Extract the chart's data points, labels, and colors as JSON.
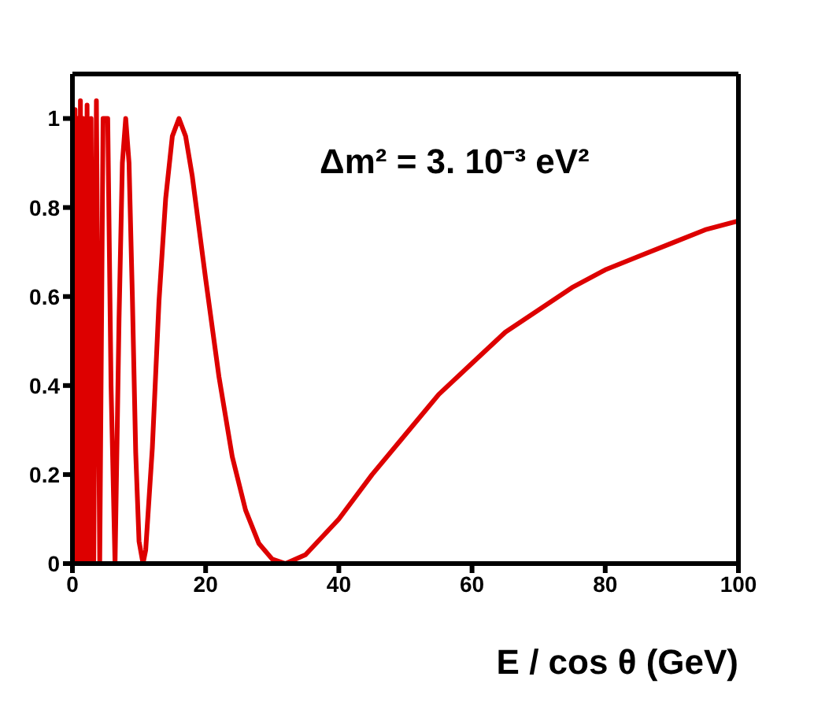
{
  "chart_data": {
    "type": "line",
    "xlabel": "E / cos θ (GeV)",
    "annotations": [
      "Δm² = 3. 10⁻³ eV²"
    ],
    "x": [
      0.2,
      0.4,
      0.6,
      0.8,
      1.0,
      1.2,
      1.4,
      1.6,
      1.9,
      2.2,
      2.5,
      2.8,
      3.2,
      3.6,
      4.1,
      4.6,
      5.3,
      5.8,
      6.4,
      7.0,
      7.5,
      8.0,
      8.5,
      9.0,
      9.5,
      10.0,
      10.6,
      11,
      12,
      13,
      14,
      15,
      16,
      17,
      18,
      20,
      22,
      24,
      26,
      28,
      30,
      32,
      35,
      40,
      45,
      50,
      55,
      60,
      65,
      70,
      75,
      80,
      85,
      90,
      95,
      100
    ],
    "series": [
      {
        "color": "#dd0000",
        "values": [
          0,
          1.02,
          0,
          1,
          0,
          1.04,
          0,
          1,
          0,
          1.03,
          0,
          1,
          0,
          1.04,
          0,
          1,
          1,
          0.4,
          0,
          0.55,
          0.9,
          1,
          0.9,
          0.6,
          0.25,
          0.05,
          0,
          0.03,
          0.26,
          0.59,
          0.82,
          0.96,
          1,
          0.96,
          0.87,
          0.64,
          0.42,
          0.24,
          0.12,
          0.045,
          0.01,
          0,
          0.02,
          0.1,
          0.2,
          0.29,
          0.38,
          0.45,
          0.52,
          0.57,
          0.62,
          0.66,
          0.69,
          0.72,
          0.75,
          0.77
        ]
      }
    ],
    "xlim": [
      0,
      100
    ],
    "xticks": [
      0,
      20,
      40,
      60,
      80,
      100
    ],
    "ylim": [
      0,
      1.1
    ],
    "yticks": [
      0,
      0.2,
      0.4,
      0.6,
      0.8,
      1
    ],
    "grid": false,
    "legend": false,
    "marker": "none",
    "line_style": "solid"
  }
}
